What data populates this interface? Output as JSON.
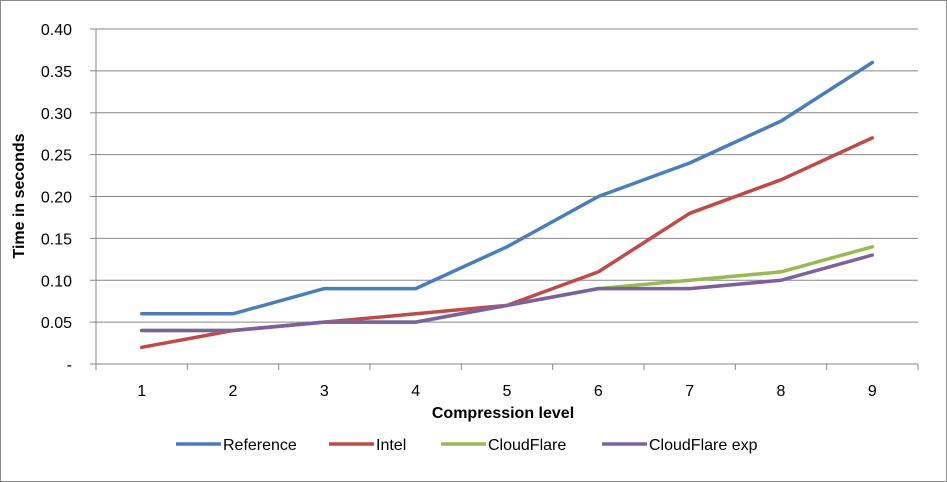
{
  "chart_data": {
    "type": "line",
    "title": "",
    "xlabel": "Compression level",
    "ylabel": "Time in seconds",
    "categories": [
      "1",
      "2",
      "3",
      "4",
      "5",
      "6",
      "7",
      "8",
      "9"
    ],
    "ylim": [
      0,
      0.4
    ],
    "y_ticks": [
      {
        "value": 0.0,
        "label": "-"
      },
      {
        "value": 0.05,
        "label": "0.05"
      },
      {
        "value": 0.1,
        "label": "0.10"
      },
      {
        "value": 0.15,
        "label": "0.15"
      },
      {
        "value": 0.2,
        "label": "0.20"
      },
      {
        "value": 0.25,
        "label": "0.25"
      },
      {
        "value": 0.3,
        "label": "0.30"
      },
      {
        "value": 0.35,
        "label": "0.35"
      },
      {
        "value": 0.4,
        "label": "0.40"
      }
    ],
    "grid": true,
    "legend_position": "bottom",
    "series": [
      {
        "name": "Reference",
        "color": "#4a7ebb",
        "values": [
          0.06,
          0.06,
          0.09,
          0.09,
          0.14,
          0.2,
          0.24,
          0.29,
          0.36
        ]
      },
      {
        "name": "Intel",
        "color": "#be4b48",
        "values": [
          0.02,
          0.04,
          0.05,
          0.06,
          0.07,
          0.11,
          0.18,
          0.22,
          0.27
        ]
      },
      {
        "name": "CloudFlare",
        "color": "#98b954",
        "values": [
          0.04,
          0.04,
          0.05,
          0.05,
          0.07,
          0.09,
          0.1,
          0.11,
          0.14
        ]
      },
      {
        "name": "CloudFlare exp",
        "color": "#7d60a0",
        "values": [
          0.04,
          0.04,
          0.05,
          0.05,
          0.07,
          0.09,
          0.09,
          0.1,
          0.13
        ]
      }
    ]
  }
}
